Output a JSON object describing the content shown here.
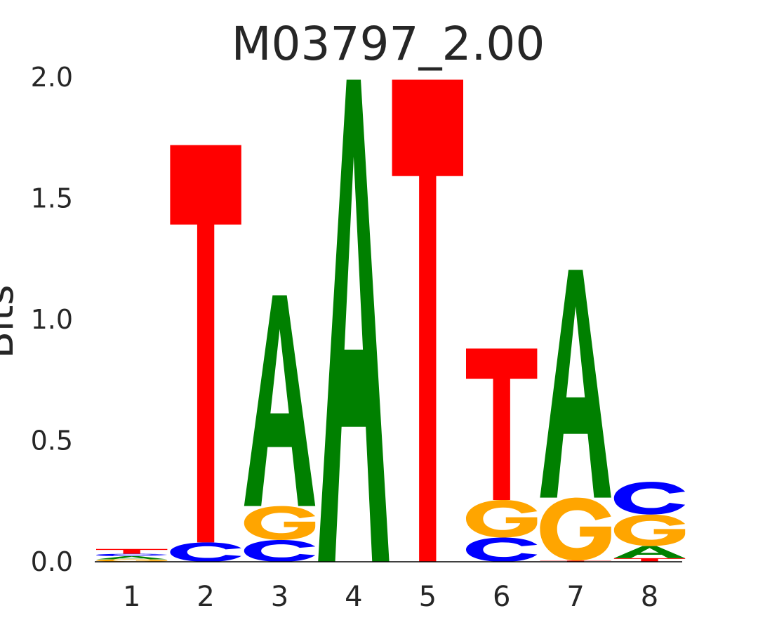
{
  "chart_data": {
    "type": "sequence-logo",
    "title": "M03797_2.00",
    "xlabel": "",
    "ylabel": "Bits",
    "ylim": [
      0,
      2
    ],
    "yticks": [
      "0.0",
      "0.5",
      "1.0",
      "1.5",
      "2.0"
    ],
    "ytick_values": [
      0,
      0.5,
      1.0,
      1.5,
      2.0
    ],
    "categories": [
      "1",
      "2",
      "3",
      "4",
      "5",
      "6",
      "7",
      "8"
    ],
    "colors": {
      "A": "#008000",
      "C": "#0000ff",
      "G": "#ffa500",
      "T": "#ff0000"
    },
    "positions": [
      {
        "pos": "1",
        "letters": [
          {
            "base": "G",
            "bits": 0.01
          },
          {
            "base": "A",
            "bits": 0.013
          },
          {
            "base": "C",
            "bits": 0.01
          },
          {
            "base": "T",
            "bits": 0.02
          }
        ]
      },
      {
        "pos": "2",
        "letters": [
          {
            "base": "C",
            "bits": 0.08
          },
          {
            "base": "T",
            "bits": 1.64
          }
        ]
      },
      {
        "pos": "3",
        "letters": [
          {
            "base": "C",
            "bits": 0.09
          },
          {
            "base": "G",
            "bits": 0.14
          },
          {
            "base": "A",
            "bits": 0.87
          }
        ]
      },
      {
        "pos": "4",
        "letters": [
          {
            "base": "A",
            "bits": 1.99
          }
        ]
      },
      {
        "pos": "5",
        "letters": [
          {
            "base": "T",
            "bits": 1.99
          }
        ]
      },
      {
        "pos": "6",
        "letters": [
          {
            "base": "C",
            "bits": 0.1
          },
          {
            "base": "G",
            "bits": 0.155
          },
          {
            "base": "T",
            "bits": 0.625
          }
        ]
      },
      {
        "pos": "7",
        "letters": [
          {
            "base": "T",
            "bits": 0.005
          },
          {
            "base": "G",
            "bits": 0.26
          },
          {
            "base": "A",
            "bits": 0.94
          }
        ]
      },
      {
        "pos": "8",
        "letters": [
          {
            "base": "T",
            "bits": 0.015
          },
          {
            "base": "A",
            "bits": 0.05
          },
          {
            "base": "G",
            "bits": 0.13
          },
          {
            "base": "C",
            "bits": 0.135
          }
        ]
      }
    ]
  }
}
